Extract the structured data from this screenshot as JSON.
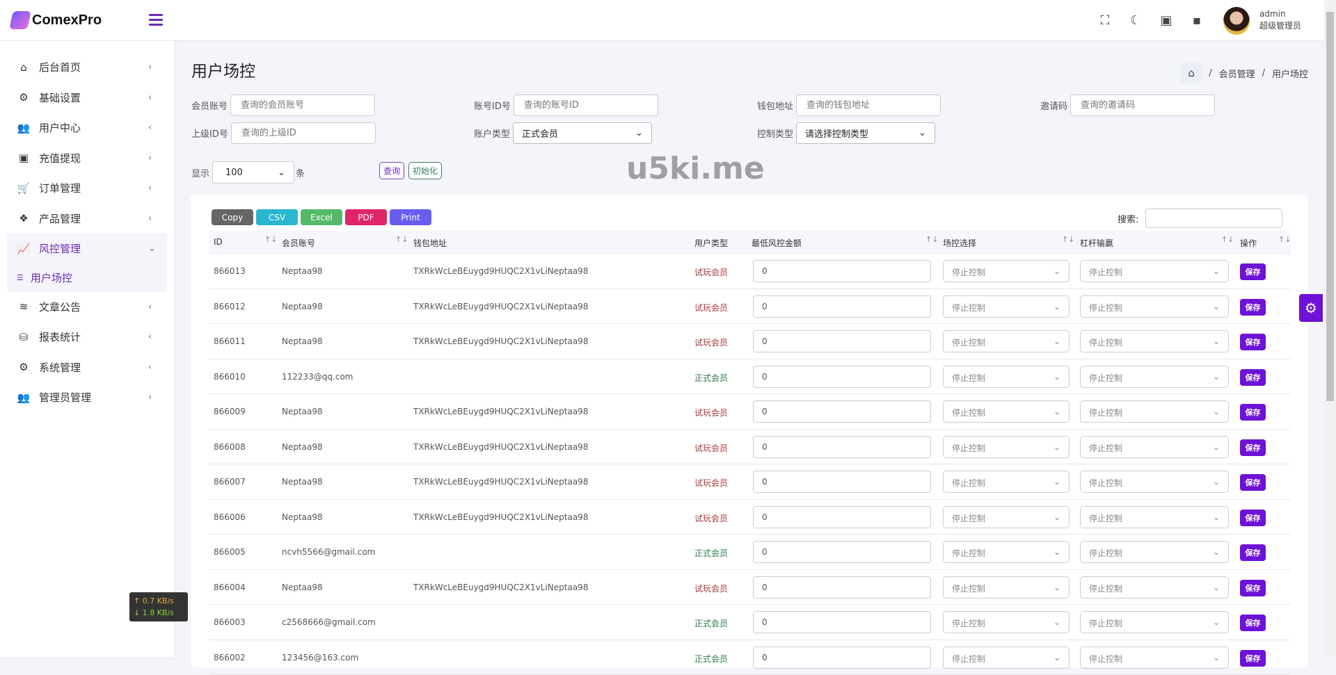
{
  "brand": {
    "name": "ComexPro"
  },
  "sidebar": {
    "items": [
      {
        "label": "后台首页",
        "icon": "home-icon"
      },
      {
        "label": "基础设置",
        "icon": "cogs-icon"
      },
      {
        "label": "用户中心",
        "icon": "users-icon"
      },
      {
        "label": "充值提现",
        "icon": "money-icon"
      },
      {
        "label": "订单管理",
        "icon": "cart-icon"
      },
      {
        "label": "产品管理",
        "icon": "cubes-icon"
      },
      {
        "label": "风控管理",
        "icon": "chart-line-icon",
        "expanded": true,
        "children": [
          {
            "label": "用户场控",
            "active": true
          }
        ]
      },
      {
        "label": "文章公告",
        "icon": "layers-icon"
      },
      {
        "label": "报表统计",
        "icon": "coins-icon"
      },
      {
        "label": "系统管理",
        "icon": "gear-icon"
      },
      {
        "label": "管理员管理",
        "icon": "user-group-icon"
      }
    ]
  },
  "header": {
    "user": {
      "name": "admin",
      "role": "超级管理员"
    },
    "icons": [
      "fullscreen-icon",
      "moon-icon",
      "money-icon",
      "chat-icon"
    ]
  },
  "page": {
    "title": "用户场控",
    "breadcrumb": [
      "会员管理",
      "用户场控"
    ]
  },
  "filters": {
    "member_account": {
      "label": "会员账号",
      "placeholder": "查询的会员账号"
    },
    "account_id": {
      "label": "账号ID号",
      "placeholder": "查询的账号ID"
    },
    "wallet": {
      "label": "钱包地址",
      "placeholder": "查询的钱包地址"
    },
    "invite": {
      "label": "邀请码",
      "placeholder": "查询的邀请码"
    },
    "parent_id": {
      "label": "上级ID号",
      "placeholder": "查询的上级ID"
    },
    "account_type": {
      "label": "账户类型",
      "value": "正式会员"
    },
    "control_type": {
      "label": "控制类型",
      "value": "请选择控制类型"
    },
    "show": {
      "label": "显示",
      "value": "100",
      "suffix": "条"
    },
    "query_label": "查询",
    "reset_label": "初始化"
  },
  "export": {
    "copy": "Copy",
    "csv": "CSV",
    "excel": "Excel",
    "pdf": "PDF",
    "print": "Print"
  },
  "search_label": "搜索:",
  "table": {
    "columns": [
      "ID",
      "会员账号",
      "钱包地址",
      "用户类型",
      "最低风控金额",
      "场控选择",
      "杠杆输赢",
      "操作"
    ],
    "select_value": "停止控制",
    "save_label": "保存",
    "rows": [
      {
        "id": "866013",
        "account": "Neptaa98",
        "wallet": "TXRkWcLeBEuygd9HUQC2X1vLiNeptaa98",
        "type": "试玩会员",
        "amount": "0"
      },
      {
        "id": "866012",
        "account": "Neptaa98",
        "wallet": "TXRkWcLeBEuygd9HUQC2X1vLiNeptaa98",
        "type": "试玩会员",
        "amount": "0"
      },
      {
        "id": "866011",
        "account": "Neptaa98",
        "wallet": "TXRkWcLeBEuygd9HUQC2X1vLiNeptaa98",
        "type": "试玩会员",
        "amount": "0"
      },
      {
        "id": "866010",
        "account": "112233@qq.com",
        "wallet": "",
        "type": "正式会员",
        "amount": "0"
      },
      {
        "id": "866009",
        "account": "Neptaa98",
        "wallet": "TXRkWcLeBEuygd9HUQC2X1vLiNeptaa98",
        "type": "试玩会员",
        "amount": "0"
      },
      {
        "id": "866008",
        "account": "Neptaa98",
        "wallet": "TXRkWcLeBEuygd9HUQC2X1vLiNeptaa98",
        "type": "试玩会员",
        "amount": "0"
      },
      {
        "id": "866007",
        "account": "Neptaa98",
        "wallet": "TXRkWcLeBEuygd9HUQC2X1vLiNeptaa98",
        "type": "试玩会员",
        "amount": "0"
      },
      {
        "id": "866006",
        "account": "Neptaa98",
        "wallet": "TXRkWcLeBEuygd9HUQC2X1vLiNeptaa98",
        "type": "试玩会员",
        "amount": "0"
      },
      {
        "id": "866005",
        "account": "ncvh5566@gmail.com",
        "wallet": "",
        "type": "正式会员",
        "amount": "0"
      },
      {
        "id": "866004",
        "account": "Neptaa98",
        "wallet": "TXRkWcLeBEuygd9HUQC2X1vLiNeptaa98",
        "type": "试玩会员",
        "amount": "0"
      },
      {
        "id": "866003",
        "account": "c2568666@gmail.com",
        "wallet": "",
        "type": "正式会员",
        "amount": "0"
      },
      {
        "id": "866002",
        "account": "123456@163.com",
        "wallet": "",
        "type": "正式会员",
        "amount": "0"
      }
    ]
  },
  "network": {
    "up": "↑ 0.7 KB/s",
    "down": "↓ 1.8 KB/s"
  },
  "watermark": "u5ki.me",
  "colors": {
    "accent": "#6d12d6",
    "sidebar_active": "#6a2bb3",
    "trial": "#a33a3a",
    "formal": "#2e7a4a"
  }
}
